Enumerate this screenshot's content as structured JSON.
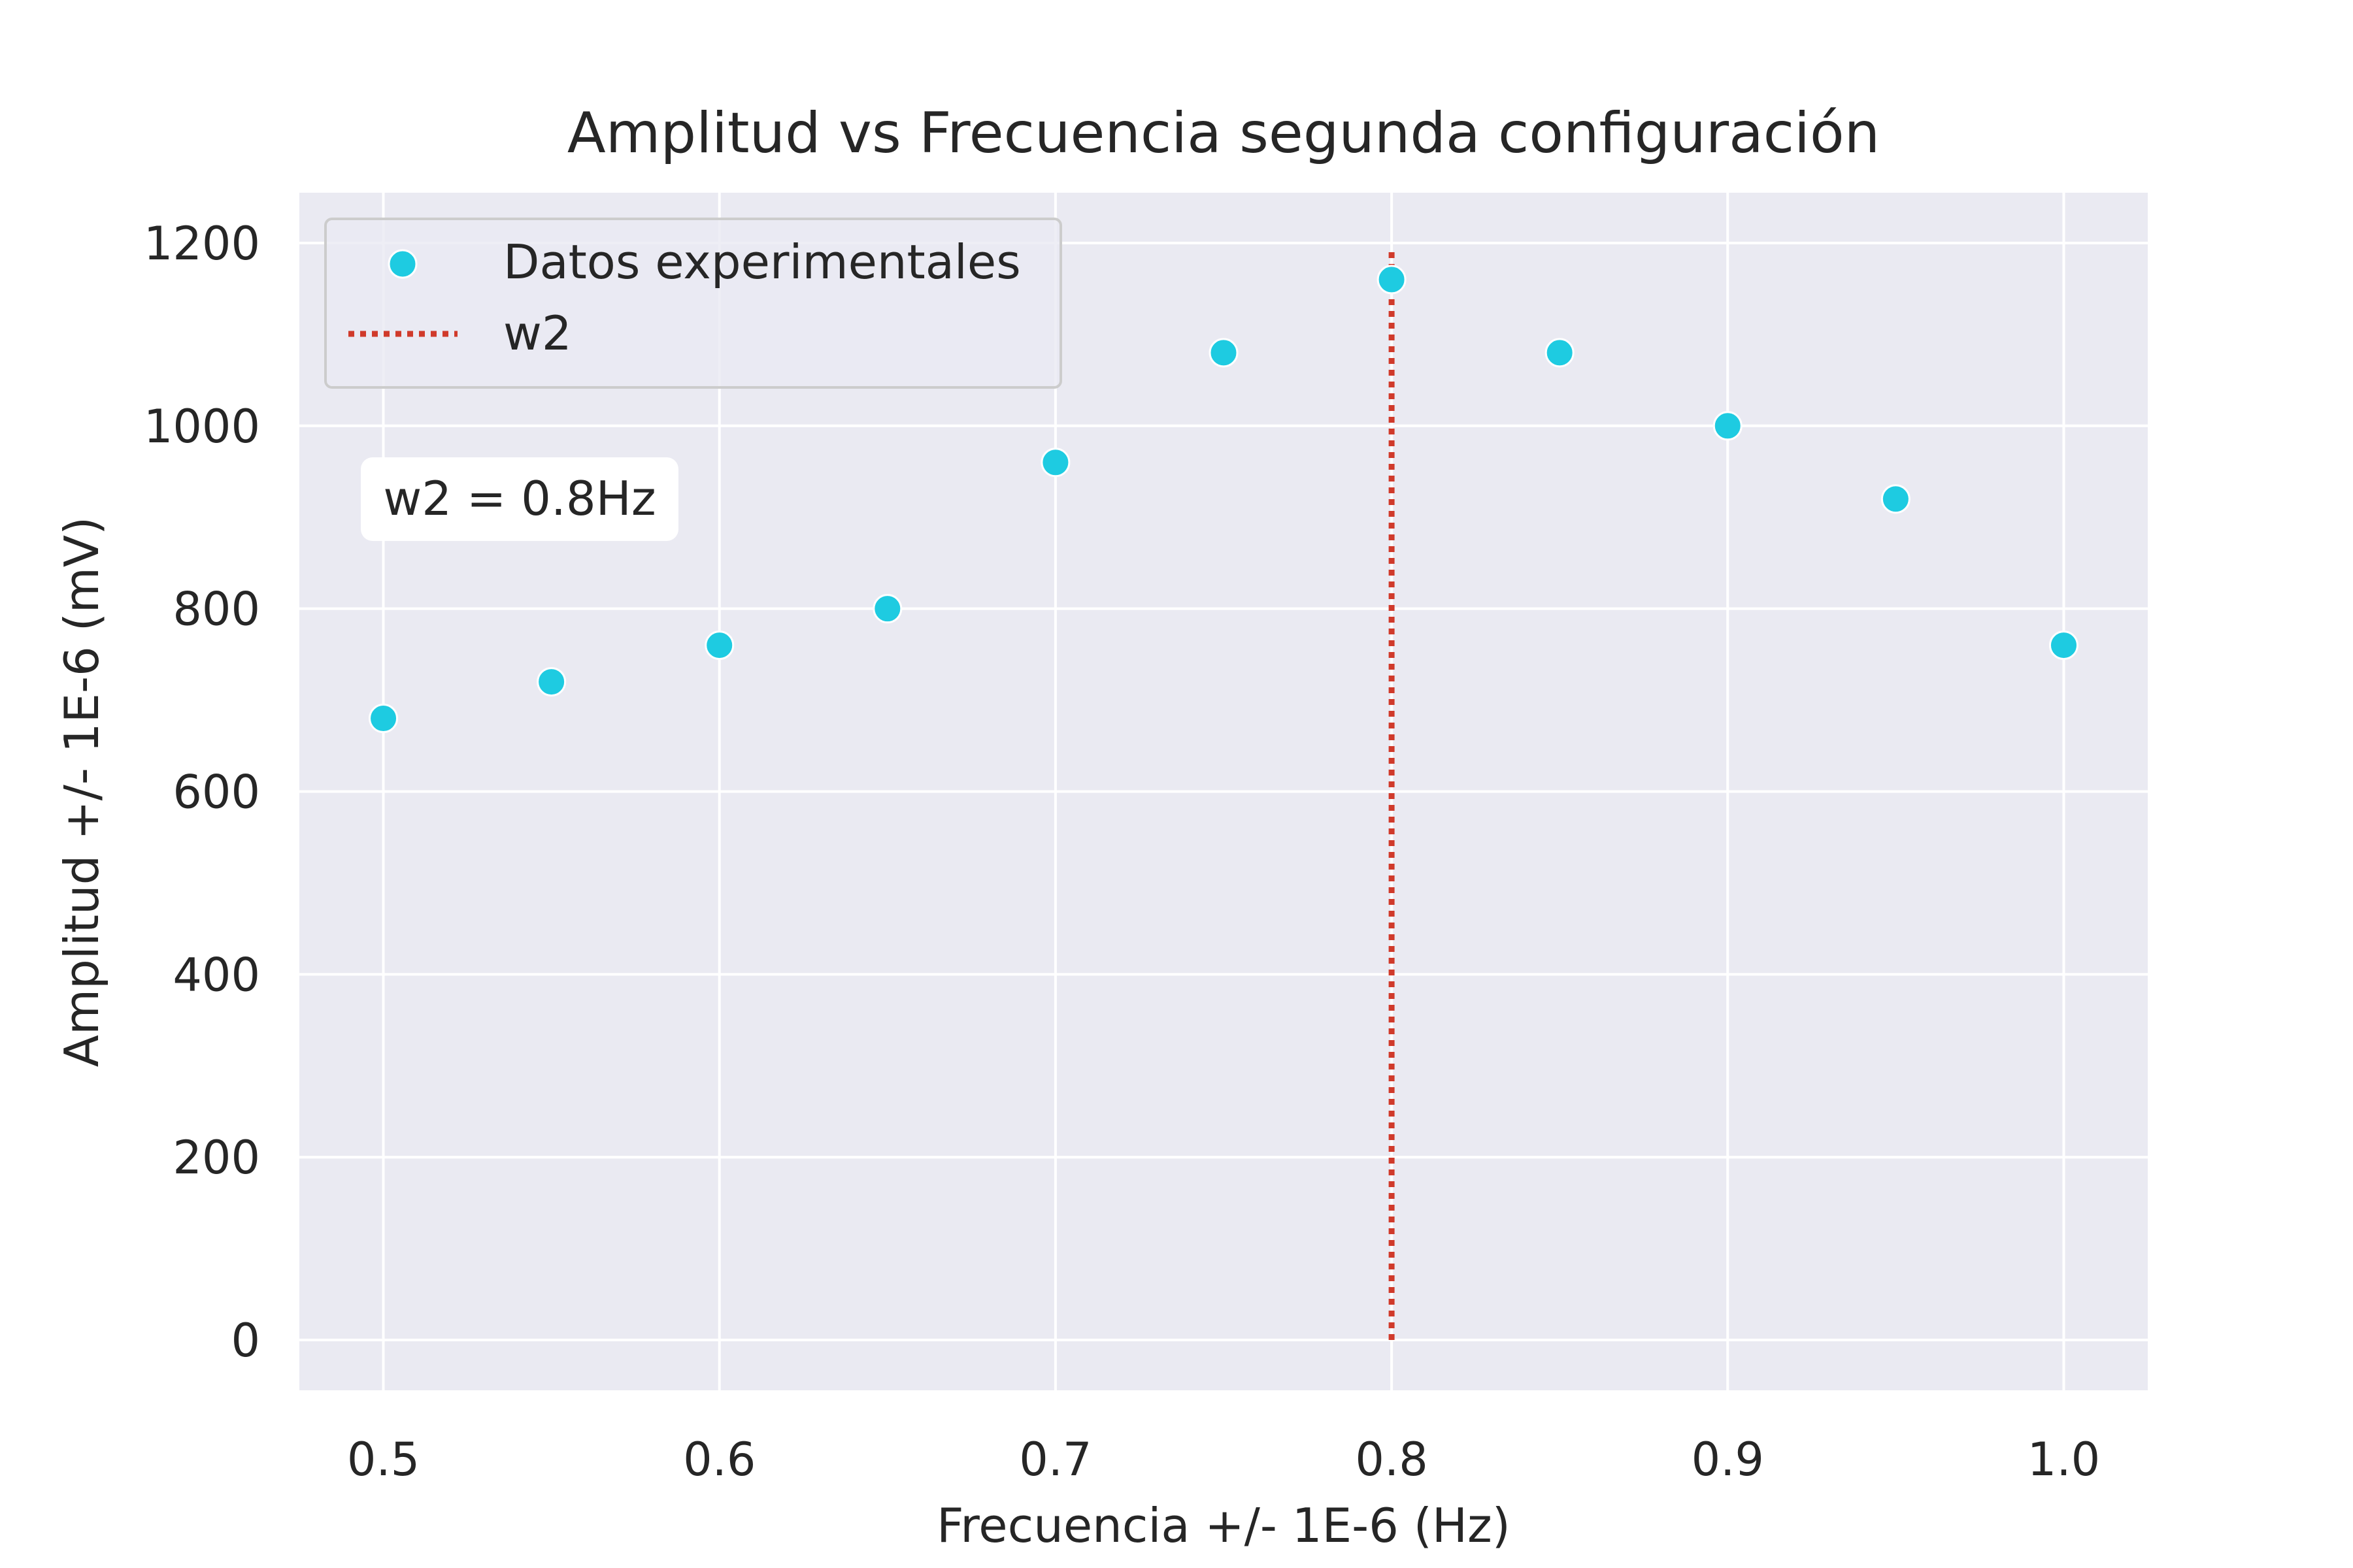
{
  "chart_data": {
    "type": "scatter",
    "title": "Amplitud vs Frecuencia segunda configuración",
    "xlabel": "Frecuencia +/- 1E-6 (Hz)",
    "ylabel": "Amplitud +/- 1E-6 (mV)",
    "xlim": [
      0.475,
      1.025
    ],
    "ylim": [
      -55,
      1255
    ],
    "xticks": [
      0.5,
      0.6,
      0.7,
      0.8,
      0.9,
      1.0
    ],
    "xtick_labels": [
      "0.5",
      "0.6",
      "0.7",
      "0.8",
      "0.9",
      "1.0"
    ],
    "yticks": [
      0,
      200,
      400,
      600,
      800,
      1000,
      1200
    ],
    "ytick_labels": [
      "0",
      "200",
      "400",
      "600",
      "800",
      "1000",
      "1200"
    ],
    "grid": true,
    "legend_position": "top-left",
    "series": [
      {
        "name": "Datos experimentales",
        "kind": "scatter",
        "color": "#1ecbe1",
        "x": [
          0.5,
          0.55,
          0.6,
          0.65,
          0.7,
          0.75,
          0.8,
          0.85,
          0.9,
          0.95,
          1.0
        ],
        "y": [
          680,
          720,
          760,
          800,
          960,
          1080,
          1160,
          1080,
          1000,
          920,
          760
        ]
      },
      {
        "name": "w2",
        "kind": "vline",
        "style": "dotted",
        "color": "#d03a2b",
        "x": 0.8,
        "y_range": [
          0,
          1190
        ]
      }
    ],
    "annotation": {
      "text": "w2 = 0.8Hz"
    }
  },
  "colors": {
    "plot_background": "#eaeaf2",
    "grid": "#ffffff",
    "legend_border": "#cccccc"
  }
}
